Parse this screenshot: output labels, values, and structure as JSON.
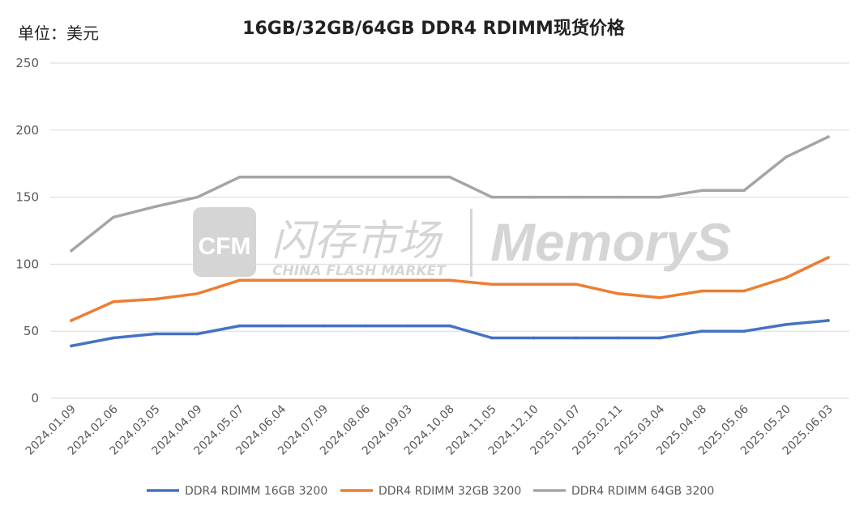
{
  "unit_label": "单位：美元",
  "watermark": {
    "logo_text": "CFM",
    "cn_text": "闪存市场",
    "en_text": "CHINA FLASH MARKET",
    "brand_text": "MemoryS"
  },
  "colors": {
    "series_16gb": "#4472C4",
    "series_32gb": "#ED7D31",
    "series_64gb": "#A5A5A5",
    "grid": "#D9D9D9"
  },
  "chart_data": {
    "type": "line",
    "title": "16GB/32GB/64GB DDR4 RDIMM现货价格",
    "xlabel": "",
    "ylabel": "",
    "ylim": [
      0,
      250
    ],
    "yticks": [
      0,
      50,
      100,
      150,
      200,
      250
    ],
    "grid": true,
    "legend_position": "bottom",
    "categories": [
      "2024.01.09",
      "2024.02.06",
      "2024.03.05",
      "2024.04.09",
      "2024.05.07",
      "2024.06.04",
      "2024.07.09",
      "2024.08.06",
      "2024.09.03",
      "2024.10.08",
      "2024.11.05",
      "2024.12.10",
      "2025.01.07",
      "2025.02.11",
      "2025.03.04",
      "2025.04.08",
      "2025.05.06",
      "2025.05.20",
      "2025.06.03"
    ],
    "series": [
      {
        "name": "DDR4 RDIMM 16GB 3200",
        "color": "#4472C4",
        "values": [
          39,
          45,
          48,
          48,
          54,
          54,
          54,
          54,
          54,
          54,
          45,
          45,
          45,
          45,
          45,
          50,
          50,
          55,
          58
        ]
      },
      {
        "name": "DDR4 RDIMM 32GB 3200",
        "color": "#ED7D31",
        "values": [
          58,
          72,
          74,
          78,
          88,
          88,
          88,
          88,
          88,
          88,
          85,
          85,
          85,
          78,
          75,
          80,
          80,
          90,
          105
        ]
      },
      {
        "name": "DDR4 RDIMM 64GB 3200",
        "color": "#A5A5A5",
        "values": [
          110,
          135,
          143,
          150,
          165,
          165,
          165,
          165,
          165,
          165,
          150,
          150,
          150,
          150,
          150,
          155,
          155,
          180,
          195
        ]
      }
    ]
  }
}
